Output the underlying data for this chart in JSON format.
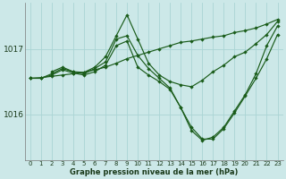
{
  "xlabel": "Graphe pression niveau de la mer (hPa)",
  "bg_color": "#cce8e8",
  "grid_color": "#aad4d4",
  "line_color": "#1a5c1a",
  "ylim": [
    1015.3,
    1017.7
  ],
  "yticks": [
    1016.0,
    1017.0
  ],
  "xlim": [
    -0.5,
    23.5
  ],
  "xticks": [
    0,
    1,
    2,
    3,
    4,
    5,
    6,
    7,
    8,
    9,
    10,
    11,
    12,
    13,
    14,
    15,
    16,
    17,
    18,
    19,
    20,
    21,
    22,
    23
  ],
  "line1_x": [
    0,
    1,
    2,
    3,
    4,
    5,
    6,
    7,
    8,
    9,
    10,
    11,
    12,
    13,
    14,
    15,
    16,
    17,
    18,
    19,
    20,
    21,
    22,
    23
  ],
  "line1_y": [
    1016.55,
    1016.56,
    1016.58,
    1016.6,
    1016.62,
    1016.64,
    1016.68,
    1016.72,
    1016.78,
    1016.85,
    1016.9,
    1016.95,
    1017.0,
    1017.05,
    1017.1,
    1017.12,
    1017.15,
    1017.18,
    1017.2,
    1017.25,
    1017.28,
    1017.32,
    1017.38,
    1017.45
  ],
  "line2_x": [
    0,
    1,
    2,
    3,
    4,
    5,
    6,
    7,
    8,
    9,
    10,
    11,
    12,
    13,
    14,
    15,
    16,
    17,
    18,
    19,
    20,
    21,
    22,
    23
  ],
  "line2_y": [
    1016.55,
    1016.55,
    1016.62,
    1016.7,
    1016.65,
    1016.62,
    1016.7,
    1016.8,
    1017.15,
    1017.2,
    1016.9,
    1016.7,
    1016.55,
    1016.4,
    1016.1,
    1015.75,
    1015.6,
    1015.65,
    1015.8,
    1016.05,
    1016.3,
    1016.62,
    1017.05,
    1017.35
  ],
  "line3_x": [
    2,
    3,
    4,
    5,
    6,
    7,
    8,
    9,
    10,
    11,
    12,
    13,
    14,
    15,
    16,
    17,
    18,
    19,
    20,
    21,
    22,
    23
  ],
  "line3_y": [
    1016.65,
    1016.72,
    1016.65,
    1016.64,
    1016.72,
    1016.88,
    1017.2,
    1017.52,
    1017.15,
    1016.78,
    1016.6,
    1016.5,
    1016.45,
    1016.42,
    1016.52,
    1016.65,
    1016.75,
    1016.88,
    1016.95,
    1017.08,
    1017.22,
    1017.42
  ],
  "line4_x": [
    0,
    1,
    2,
    3,
    4,
    5,
    6,
    7,
    8,
    9,
    10,
    11,
    12,
    13,
    14,
    15,
    16,
    17,
    18,
    19,
    20,
    21,
    22,
    23
  ],
  "line4_y": [
    1016.55,
    1016.55,
    1016.6,
    1016.68,
    1016.63,
    1016.6,
    1016.65,
    1016.75,
    1017.05,
    1017.12,
    1016.72,
    1016.6,
    1016.5,
    1016.38,
    1016.1,
    1015.8,
    1015.62,
    1015.62,
    1015.78,
    1016.02,
    1016.28,
    1016.55,
    1016.85,
    1017.22
  ]
}
